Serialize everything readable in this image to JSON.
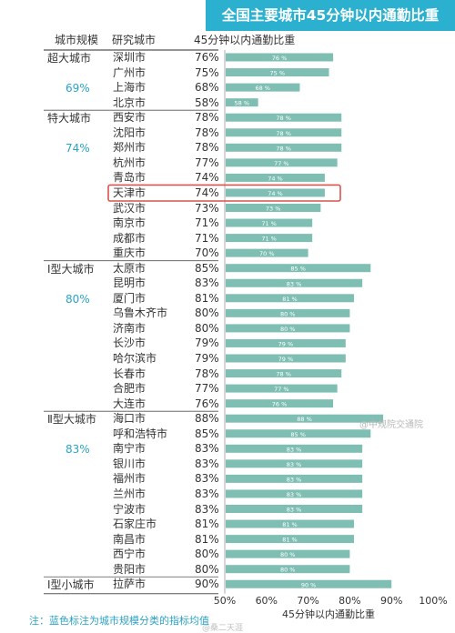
{
  "title": "全国主要城市45分钟以内通勤比重",
  "headers": {
    "scale": "城市规模",
    "city": "研究城市",
    "value": "45分钟以内通勤比重"
  },
  "note": "注：蓝色标注为城市规模分类的指标均值",
  "watermark_right": "@中规院交通院",
  "watermark_bottom": "@桑二天涯",
  "groups": [
    {
      "name": "超大城市",
      "avg": "69%"
    },
    {
      "name": "特大城市",
      "avg": "74%"
    },
    {
      "name": "Ⅰ型大城市",
      "avg": "80%"
    },
    {
      "name": "Ⅱ型大城市",
      "avg": "83%"
    },
    {
      "name": "Ⅰ型小城市",
      "avg": ""
    }
  ],
  "chart_data": {
    "type": "bar",
    "orientation": "horizontal",
    "title": "全国主要城市45分钟以内通勤比重",
    "xlabel": "45分钟以内通勤比重",
    "xlim": [
      50,
      100
    ],
    "x_ticks": [
      "50%",
      "60%",
      "70%",
      "80%",
      "90%",
      "100%"
    ],
    "bar_color": "#7fbfb3",
    "highlight_category": "天津市",
    "highlight_color": "#d9534f",
    "categories": [
      "深圳市",
      "广州市",
      "上海市",
      "北京市",
      "西安市",
      "沈阳市",
      "郑州市",
      "杭州市",
      "青岛市",
      "天津市",
      "武汉市",
      "南京市",
      "成都市",
      "重庆市",
      "太原市",
      "昆明市",
      "厦门市",
      "乌鲁木齐市",
      "济南市",
      "长沙市",
      "哈尔滨市",
      "长春市",
      "合肥市",
      "大连市",
      "海口市",
      "呼和浩特市",
      "南宁市",
      "银川市",
      "福州市",
      "兰州市",
      "宁波市",
      "石家庄市",
      "南昌市",
      "西宁市",
      "贵阳市",
      "拉萨市"
    ],
    "values": [
      76,
      75,
      68,
      58,
      78,
      78,
      78,
      77,
      74,
      74,
      73,
      71,
      71,
      70,
      85,
      83,
      81,
      80,
      80,
      79,
      79,
      78,
      77,
      76,
      88,
      85,
      83,
      83,
      83,
      83,
      83,
      81,
      81,
      80,
      80,
      90
    ],
    "value_labels": [
      "76%",
      "75%",
      "68%",
      "58%",
      "78%",
      "78%",
      "78%",
      "77%",
      "74%",
      "74%",
      "73%",
      "71%",
      "71%",
      "70%",
      "85%",
      "83%",
      "81%",
      "80%",
      "80%",
      "79%",
      "79%",
      "78%",
      "77%",
      "76%",
      "88%",
      "85%",
      "83%",
      "83%",
      "83%",
      "83%",
      "83%",
      "81%",
      "81%",
      "80%",
      "80%",
      "90%"
    ],
    "bar_labels": [
      "76 %",
      "75 %",
      "68 %",
      "58 %",
      "78 %",
      "78 %",
      "78 %",
      "77 %",
      "74 %",
      "74 %",
      "73 %",
      "71 %",
      "71 %",
      "70 %",
      "85 %",
      "83 %",
      "81 %",
      "80 %",
      "80 %",
      "79 %",
      "79 %",
      "78 %",
      "77 %",
      "76 %",
      "88 %",
      "85 %",
      "83 %",
      "83 %",
      "83 %",
      "83 %",
      "83 %",
      "81 %",
      "81 %",
      "80 %",
      "80 %",
      "90 %"
    ],
    "group_sizes": [
      4,
      10,
      10,
      11,
      1
    ]
  }
}
